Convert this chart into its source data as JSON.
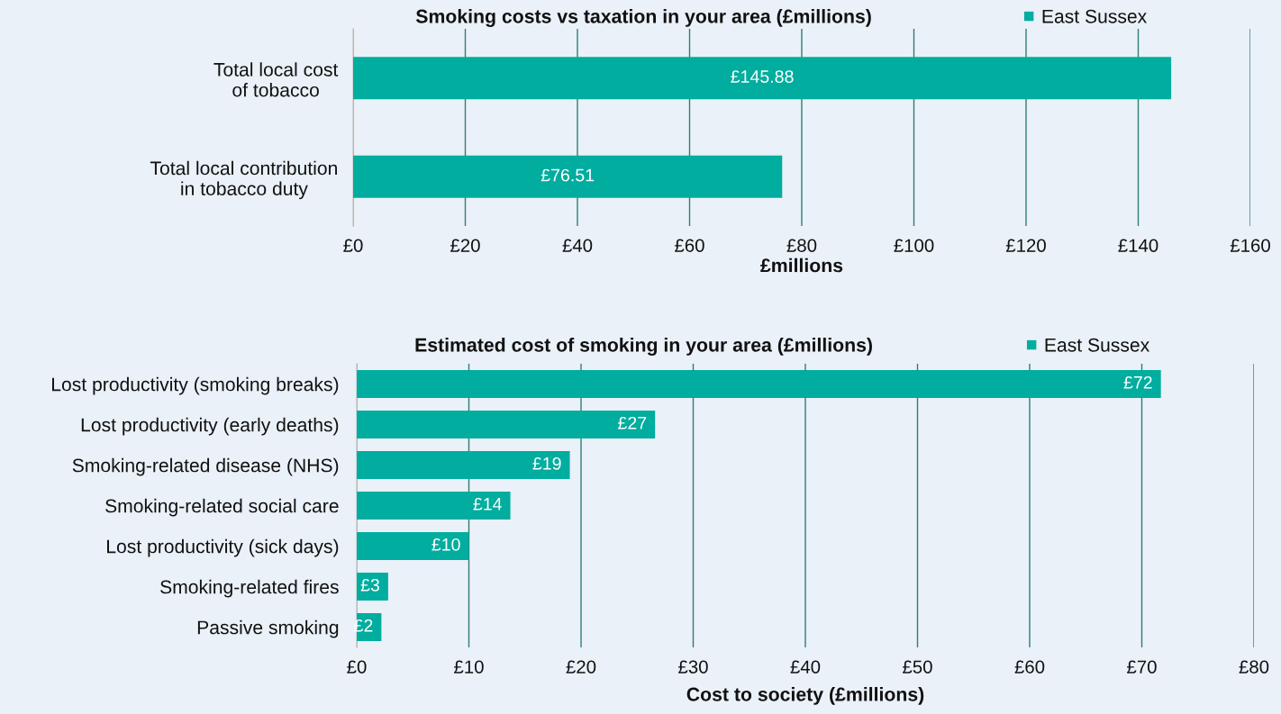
{
  "chart_data": [
    {
      "type": "bar",
      "orientation": "horizontal",
      "title": "Smoking costs vs taxation in your area (£millions)",
      "xlabel": "£millions",
      "categories": [
        "Total local cost\nof tobacco",
        "Total local contribution\nin tobacco duty"
      ],
      "series": [
        {
          "name": "East Sussex",
          "color": "#00ad9e",
          "values": [
            145.88,
            76.51
          ],
          "value_labels": [
            "£145.88",
            "£76.51"
          ]
        }
      ],
      "xlim": [
        0,
        160
      ],
      "xticks": [
        {
          "value": 0,
          "label": "£0"
        },
        {
          "value": 20,
          "label": "£20"
        },
        {
          "value": 40,
          "label": "£40"
        },
        {
          "value": 60,
          "label": "£60"
        },
        {
          "value": 80,
          "label": "£80"
        },
        {
          "value": 100,
          "label": "£100"
        },
        {
          "value": 120,
          "label": "£120"
        },
        {
          "value": 140,
          "label": "£140"
        },
        {
          "value": 160,
          "label": "£160"
        }
      ],
      "grid": "x",
      "legend": "top right"
    },
    {
      "type": "bar",
      "orientation": "horizontal",
      "title": "Estimated cost of smoking in your area (£millions)",
      "xlabel": "Cost to society (£millions)",
      "categories": [
        "Lost productivity (smoking breaks)",
        "Lost productivity (early deaths)",
        "Smoking-related disease (NHS)",
        "Smoking-related social care",
        "Lost productivity (sick days)",
        "Smoking-related fires",
        "Passive smoking"
      ],
      "series": [
        {
          "name": "East Sussex",
          "color": "#00ad9e",
          "values": [
            71.7,
            26.6,
            19.0,
            13.7,
            10.0,
            2.8,
            2.2
          ],
          "value_labels": [
            "£72",
            "£27",
            "£19",
            "£14",
            "£10",
            "£3",
            "£2"
          ]
        }
      ],
      "xlim": [
        0,
        80
      ],
      "xticks": [
        {
          "value": 0,
          "label": "£0"
        },
        {
          "value": 10,
          "label": "£10"
        },
        {
          "value": 20,
          "label": "£20"
        },
        {
          "value": 30,
          "label": "£30"
        },
        {
          "value": 40,
          "label": "£40"
        },
        {
          "value": 50,
          "label": "£50"
        },
        {
          "value": 60,
          "label": "£60"
        },
        {
          "value": 70,
          "label": "£70"
        },
        {
          "value": 80,
          "label": "£80"
        }
      ],
      "grid": "x",
      "legend": "top right"
    }
  ]
}
